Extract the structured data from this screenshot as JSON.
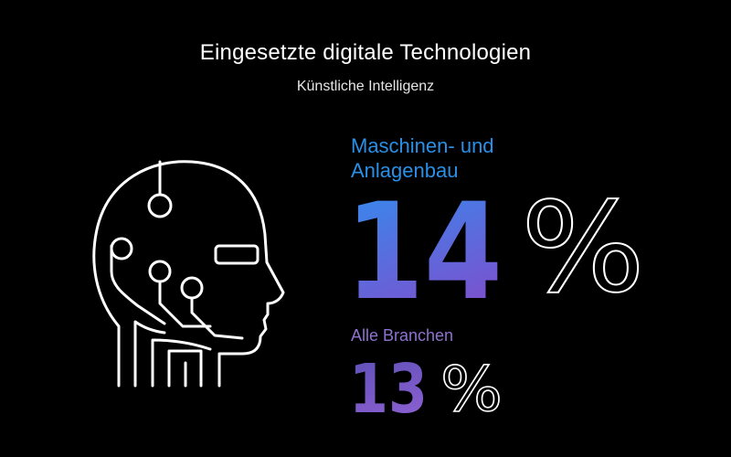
{
  "header": {
    "title": "Eingesetzte digitale Technologien",
    "subtitle": "Künstliche Intelligenz"
  },
  "icon": "ai-head-circuit-icon",
  "stats": [
    {
      "label_lines": [
        "Maschinen- und",
        "Anlagenbau"
      ],
      "number": "14",
      "unit": "%",
      "color": "#2a8fe6",
      "gradient": [
        "#2f8ff0",
        "#7a52cf"
      ]
    },
    {
      "label": "Alle Branchen",
      "number": "13",
      "unit": "%",
      "color": "#8e72cf",
      "gradient": [
        "#5b4fb6",
        "#8a5fd0"
      ]
    }
  ]
}
